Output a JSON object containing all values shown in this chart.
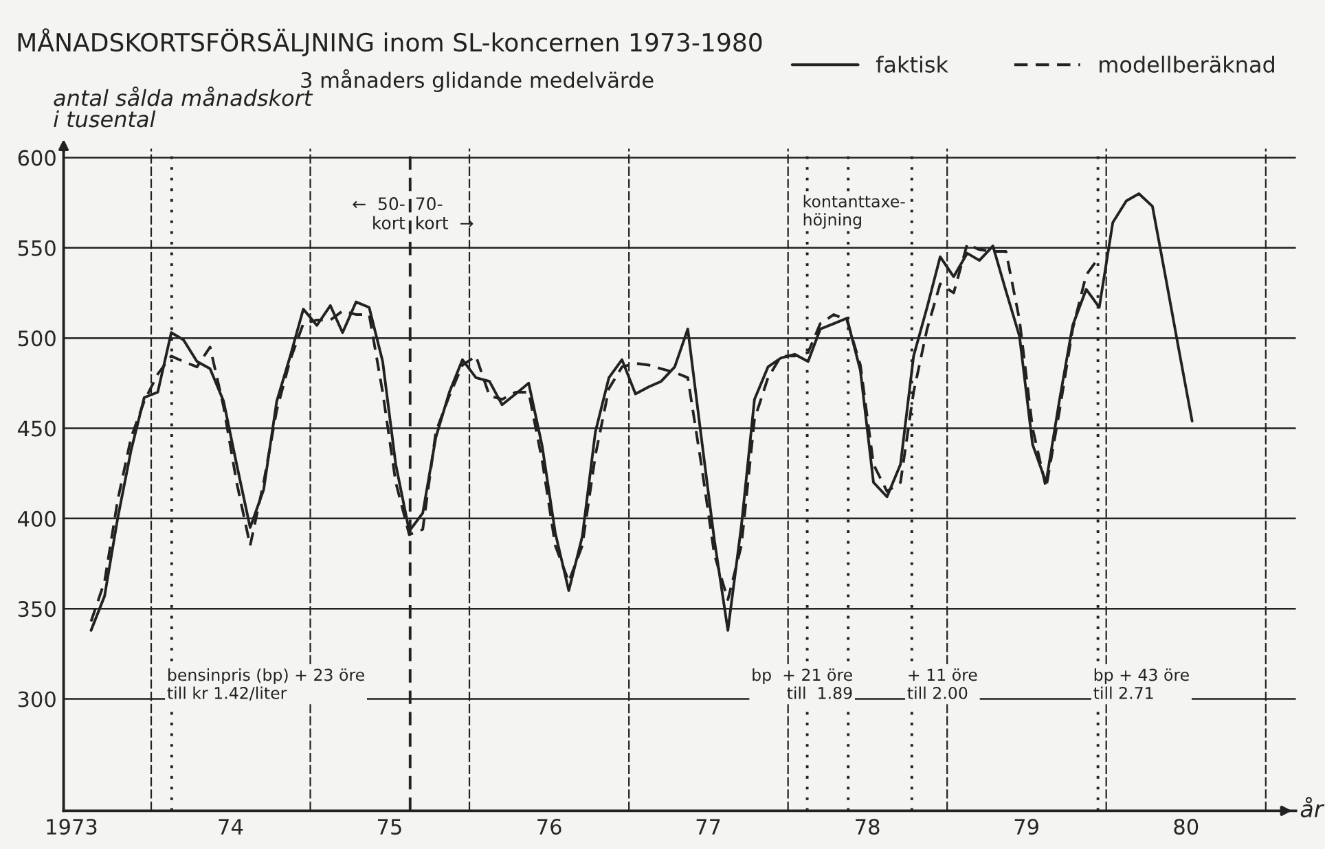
{
  "chart_data": {
    "type": "line",
    "title": "MÅNADSKORTSFÖRSÄLJNING inom SL-koncernen 1973-1980",
    "subtitle": "3 månaders glidande medelvärde",
    "ylabel": "antal sålda månadskort\ni tusental",
    "xlabel": "år",
    "xlim": [
      "1973-06-14",
      "1981-03-11"
    ],
    "xticks": [
      {
        "value": "1973-07-02",
        "label": "1973"
      },
      {
        "value": "1974-01-01",
        "label": null
      },
      {
        "value": "1974-07-02",
        "label": "74"
      },
      {
        "value": "1975-01-01",
        "label": null
      },
      {
        "value": "1975-07-02",
        "label": "75"
      },
      {
        "value": "1976-01-01",
        "label": null
      },
      {
        "value": "1976-07-02",
        "label": "76"
      },
      {
        "value": "1977-01-01",
        "label": null
      },
      {
        "value": "1977-07-02",
        "label": "77"
      },
      {
        "value": "1978-01-01",
        "label": null
      },
      {
        "value": "1978-07-02",
        "label": "78"
      },
      {
        "value": "1979-01-01",
        "label": null
      },
      {
        "value": "1979-07-02",
        "label": "79"
      },
      {
        "value": "1980-01-01",
        "label": null
      },
      {
        "value": "1980-07-02",
        "label": "80"
      },
      {
        "value": "1981-01-01",
        "label": null
      }
    ],
    "ylim": [
      238,
      605
    ],
    "yticks": [
      300,
      350,
      400,
      450,
      500,
      550,
      600
    ],
    "grid": true,
    "legend": "top right",
    "x": [
      "1973-08-16",
      "1973-09-16",
      "1973-10-16",
      "1973-11-16",
      "1973-12-16",
      "1974-01-16",
      "1974-02-16",
      "1974-03-16",
      "1974-04-16",
      "1974-05-16",
      "1974-06-16",
      "1974-07-16",
      "1974-08-16",
      "1974-09-16",
      "1974-10-16",
      "1974-11-16",
      "1974-12-16",
      "1975-01-16",
      "1975-02-16",
      "1975-03-16",
      "1975-04-16",
      "1975-05-16",
      "1975-06-16",
      "1975-07-16",
      "1975-08-16",
      "1975-09-16",
      "1975-10-16",
      "1975-11-16",
      "1975-12-16",
      "1976-01-16",
      "1976-02-16",
      "1976-03-16",
      "1976-04-16",
      "1976-05-16",
      "1976-06-16",
      "1976-07-16",
      "1976-08-16",
      "1976-09-16",
      "1976-10-16",
      "1976-11-16",
      "1976-12-16",
      "1977-01-16",
      "1977-02-16",
      "1977-03-16",
      "1977-04-16",
      "1977-05-16",
      "1977-06-16",
      "1977-07-16",
      "1977-08-16",
      "1977-09-16",
      "1977-10-16",
      "1977-11-16",
      "1977-12-16",
      "1978-01-16",
      "1978-02-16",
      "1978-03-16",
      "1978-04-16",
      "1978-05-16",
      "1978-06-16",
      "1978-07-16",
      "1978-08-16",
      "1978-09-16",
      "1978-10-16",
      "1978-11-16",
      "1978-12-16",
      "1979-01-16",
      "1979-02-16",
      "1979-03-16",
      "1979-04-16",
      "1979-05-16",
      "1979-06-16",
      "1979-07-16",
      "1979-08-16",
      "1979-09-16",
      "1979-10-16",
      "1979-11-16",
      "1979-12-16",
      "1980-01-16",
      "1980-02-16",
      "1980-03-16",
      "1980-04-16",
      "1980-05-16",
      "1980-06-16",
      "1980-07-16"
    ],
    "series": [
      {
        "name": "faktisk",
        "color": "#222222",
        "line_style": "solid",
        "values": [
          338,
          357,
          400,
          438,
          467,
          470,
          503,
          499,
          487,
          483,
          465,
          430,
          395,
          416,
          465,
          490,
          516,
          507,
          518,
          503,
          520,
          517,
          487,
          430,
          393,
          403,
          445,
          470,
          488,
          478,
          476,
          463,
          469,
          475,
          440,
          392,
          360,
          390,
          448,
          478,
          488,
          469,
          473,
          476,
          484,
          505,
          445,
          388,
          338,
          396,
          466,
          484,
          489,
          491,
          487,
          505,
          508,
          511,
          482,
          420,
          412,
          430,
          490,
          517,
          545,
          534,
          547,
          543,
          551,
          526,
          501,
          441,
          420,
          466,
          507,
          527,
          517,
          564,
          576,
          580,
          573,
          534,
          493,
          454
        ]
      },
      {
        "name": "modellberäknad",
        "color": "#222222",
        "line_style": "dashed",
        "values": [
          343,
          365,
          410,
          445,
          465,
          480,
          490,
          487,
          484,
          495,
          462,
          420,
          385,
          420,
          460,
          488,
          508,
          510,
          510,
          515,
          513,
          513,
          470,
          420,
          391,
          394,
          448,
          468,
          485,
          490,
          468,
          466,
          470,
          470,
          432,
          385,
          365,
          385,
          435,
          472,
          484,
          486,
          485,
          483,
          481,
          478,
          430,
          380,
          355,
          385,
          455,
          478,
          490,
          490,
          492,
          508,
          513,
          510,
          485,
          430,
          415,
          420,
          470,
          505,
          530,
          525,
          552,
          549,
          548,
          548,
          510,
          450,
          417,
          460,
          505,
          535,
          545,
          null,
          null,
          null,
          null,
          null,
          null,
          null
        ]
      }
    ],
    "ref_lines": [
      {
        "axis": "x",
        "value": "1974-02-17",
        "label": "bensinpris (bp) + 23 öre\ntill kr 1.42/liter",
        "line_style": "dotted",
        "color": "#222222"
      },
      {
        "axis": "x",
        "value": "1975-08-18",
        "label": null,
        "line_style": "dashed",
        "color": "#222222"
      },
      {
        "axis": "x",
        "value": "1978-05-19",
        "label": "bp  + 21 öre\ntill  1.89",
        "line_style": "dotted",
        "color": "#222222"
      },
      {
        "axis": "x",
        "value": "1978-02-14",
        "label": "kontanttaxe-\nhöjning",
        "line_style": "dotted",
        "color": "#222222"
      },
      {
        "axis": "x",
        "value": "1978-10-12",
        "label": "+ 11 öre\ntill 2.00",
        "line_style": "dotted",
        "color": "#222222"
      },
      {
        "axis": "x",
        "value": "1979-12-13",
        "label": "bp + 43 öre\ntill 2.71",
        "line_style": "dotted",
        "color": "#222222"
      }
    ],
    "annotations": [
      "←  50-\n     kort",
      "70-\nkort  →"
    ]
  }
}
